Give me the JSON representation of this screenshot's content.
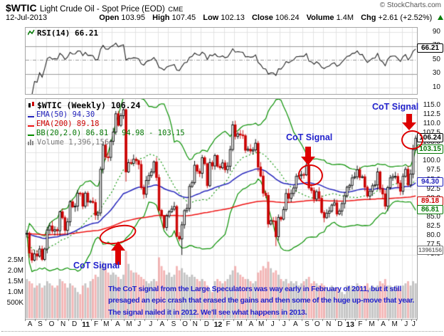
{
  "header": {
    "symbol": "$WTIC",
    "title": "Light Crude Oil - Spot Price (EOD)",
    "exchange": "CME",
    "copyright": "© StockCharts.com",
    "date": "12-Jul-2013",
    "quote": {
      "open_label": "Open",
      "open": "103.95",
      "high_label": "High",
      "high": "107.45",
      "low_label": "Low",
      "low": "102.13",
      "close_label": "Close",
      "close": "106.24",
      "volume_label": "Volume",
      "volume": "1.4M",
      "chg_label": "Chg",
      "chg": "+2.61 (+2.52%)"
    }
  },
  "rsi_panel": {
    "legend": "RSI(14) 66.21",
    "value": 66.21,
    "ticks": [
      90,
      70,
      50,
      30,
      10
    ]
  },
  "main_panel": {
    "legend_symbol": "$WTIC (Weekly) 106.24",
    "legend_ema50": "EMA(50) 94.30",
    "legend_ema200": "EMA(200) 89.18",
    "legend_bb": "BB(20,2.0) 86.81 - 94.98 - 103.15",
    "legend_volume": "Volume 1,396,156",
    "price_ticks": [
      115,
      112.5,
      110,
      107.5,
      105,
      102.5,
      100,
      97.5,
      95,
      92.5,
      90,
      87.5,
      85,
      82.5,
      80,
      77.5,
      75
    ],
    "volume_tick_labels": [
      "2.5M",
      "2.0M",
      "1.5M",
      "1.0M",
      "500K"
    ],
    "volume_tick_values": [
      2.5,
      2.0,
      1.5,
      1.0,
      0.5
    ],
    "volume_tag": "1396156"
  },
  "annotations": {
    "cot1": "CoT Signal",
    "cot2": "CoT Signal",
    "cot3": "CoT Signal",
    "paragraph": "The CoT signal from the Large Speculators was way early in February of 2011, but it still presaged an epic crash that erased the gains and then some of the huge up-move that year. The signal nailed it in 2012. We'll see what happens in 2013."
  },
  "colors": {
    "candle_down": "#cc0000",
    "candle_up_fill": "#ffffff",
    "candle_up_stroke": "#000000",
    "ema50": "#2323bb",
    "ema200": "#ee1111",
    "bb": "#089000",
    "vol_up": "rgba(165,165,165,0.65)",
    "vol_down": "rgba(235,130,130,0.6)",
    "grid": "#e3e3e3",
    "rsi_band": "#999999",
    "rsi_line": "#222222",
    "annotation_red": "#dd0000",
    "annotation_blue": "#2222cc",
    "positive": "#097d09"
  },
  "chart_data": {
    "type": "candlestick",
    "title": "$WTIC (Weekly) with EMA(50), EMA(200), BB(20,2.0), Volume and RSI(14)",
    "x_month_labels": [
      "A",
      "S",
      "O",
      "N",
      "D",
      "11",
      "F",
      "M",
      "A",
      "M",
      "J",
      "J",
      "A",
      "S",
      "O",
      "N",
      "D",
      "12",
      "F",
      "M",
      "A",
      "M",
      "J",
      "J",
      "A",
      "S",
      "O",
      "N",
      "D",
      "13",
      "F",
      "M",
      "A",
      "M",
      "J",
      "J"
    ],
    "year_labels": [
      "11",
      "12",
      "13"
    ],
    "weeks_per_month": [
      4,
      4,
      5,
      4,
      5,
      4,
      4,
      4,
      5,
      4,
      4,
      5,
      4,
      5,
      4,
      4,
      5,
      4,
      4,
      5,
      4,
      4,
      5,
      4,
      5,
      4,
      4,
      5,
      4,
      4,
      4,
      5,
      4,
      5,
      4,
      2
    ],
    "price_range": [
      75,
      115
    ],
    "rsi_grid": [
      90,
      70,
      50,
      30,
      10
    ],
    "weekly_close": [
      80.7,
      75.4,
      73.5,
      75.2,
      74.6,
      76.5,
      73.7,
      76.5,
      81.6,
      82.7,
      81.3,
      81.7,
      81.4,
      86.5,
      84.9,
      81.5,
      83.8,
      89.2,
      87.8,
      88.0,
      91.5,
      91.4,
      88.0,
      91.5,
      89.1,
      89.3,
      89.0,
      85.6,
      86.2,
      97.9,
      104.4,
      101.2,
      101.1,
      105.4,
      107.9,
      112.8,
      109.7,
      112.3,
      113.9,
      97.2,
      99.7,
      99.5,
      100.6,
      100.2,
      99.2,
      93.0,
      91.2,
      94.9,
      96.2,
      97.2,
      99.9,
      95.7,
      86.9,
      85.4,
      82.3,
      85.4,
      86.5,
      87.2,
      87.9,
      79.9,
      79.2,
      83.0,
      86.8,
      87.4,
      93.3,
      94.3,
      99.0,
      97.4,
      96.8,
      101.0,
      99.4,
      93.5,
      99.7,
      98.8,
      101.6,
      98.7,
      98.3,
      99.6,
      97.8,
      98.7,
      103.2,
      109.8,
      106.7,
      107.4,
      107.1,
      106.9,
      103.0,
      103.3,
      102.8,
      103.1,
      104.9,
      98.5,
      96.1,
      91.5,
      90.9,
      83.2,
      84.1,
      84.0,
      79.8,
      85.0,
      84.5,
      87.1,
      91.4,
      90.1,
      91.4,
      92.9,
      96.0,
      96.2,
      96.5,
      96.4,
      99.0,
      92.9,
      92.2,
      89.9,
      91.9,
      90.1,
      86.3,
      84.9,
      86.1,
      86.7,
      88.3,
      88.9,
      85.9,
      86.7,
      88.7,
      90.8,
      93.1,
      93.6,
      95.6,
      95.9,
      97.8,
      95.7,
      95.9,
      93.1,
      90.7,
      92.0,
      93.5,
      93.7,
      97.2,
      92.7,
      91.3,
      88.0,
      93.0,
      95.6,
      96.0,
      96.0,
      94.2,
      92.0,
      96.0,
      97.9,
      93.7,
      96.6,
      103.2,
      106.24
    ],
    "volume_millions": [
      1.6,
      1.5,
      1.4,
      1.2,
      1.3,
      1.4,
      1.2,
      1.3,
      1.5,
      1.4,
      1.3,
      1.2,
      1.3,
      1.6,
      1.5,
      1.4,
      1.2,
      1.4,
      1.3,
      1.2,
      1.0,
      0.9,
      1.3,
      1.4,
      1.2,
      1.5,
      1.6,
      1.8,
      1.7,
      2.2,
      2.4,
      2.1,
      1.9,
      1.8,
      1.9,
      1.8,
      1.7,
      1.6,
      1.8,
      2.9,
      2.3,
      2.0,
      1.9,
      1.9,
      1.8,
      1.7,
      1.6,
      1.5,
      1.4,
      1.5,
      1.6,
      1.5,
      2.6,
      2.2,
      2.0,
      1.8,
      1.9,
      1.7,
      1.8,
      2.2,
      2.0,
      2.1,
      1.9,
      1.8,
      1.7,
      1.8,
      1.7,
      1.6,
      1.5,
      1.6,
      1.5,
      1.3,
      1.1,
      1.0,
      1.5,
      1.6,
      1.5,
      1.4,
      1.5,
      1.6,
      1.8,
      2.0,
      2.2,
      1.9,
      1.8,
      1.7,
      1.6,
      1.6,
      1.5,
      1.4,
      1.5,
      1.9,
      2.0,
      2.2,
      2.1,
      2.4,
      2.1,
      1.9,
      2.0,
      1.8,
      1.6,
      1.5,
      1.6,
      1.4,
      1.5,
      1.4,
      1.5,
      1.3,
      1.4,
      1.5,
      1.6,
      1.7,
      1.4,
      1.5,
      1.4,
      1.3,
      1.4,
      1.3,
      1.2,
      1.1,
      1.3,
      1.2,
      1.2,
      1.1,
      1.0,
      0.9,
      1.3,
      1.2,
      1.3,
      1.2,
      1.4,
      1.3,
      1.2,
      1.3,
      1.4,
      1.2,
      1.3,
      1.2,
      1.3,
      1.5,
      1.4,
      1.6,
      1.3,
      1.3,
      1.2,
      1.3,
      1.2,
      1.1,
      1.3,
      1.4,
      1.5,
      1.3,
      1.5,
      1.4
    ],
    "low_overrides": {
      "27": 84.3,
      "39": 94.6,
      "61": 74.9,
      "98": 77.3
    },
    "overlays": [
      "EMA(50)",
      "EMA(200)",
      "BB(20,2.0)"
    ],
    "sub_indicator": "RSI(14)",
    "last_values": {
      "close": 106.24,
      "ema50": 94.3,
      "ema200": 89.18,
      "bb_lower": 86.81,
      "bb_mid": 94.98,
      "bb_upper": 103.15,
      "rsi": 66.21,
      "volume": 1396156
    }
  }
}
